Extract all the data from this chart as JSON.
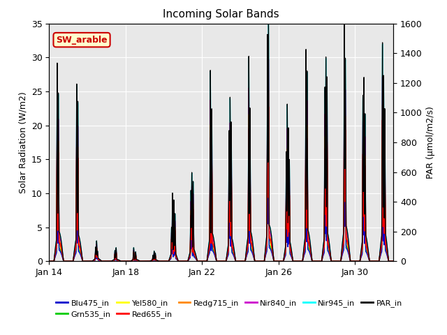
{
  "title": "Incoming Solar Bands",
  "ylabel_left": "Solar Radiation (W/m2)",
  "ylabel_right": "PAR (μmol/m2/s)",
  "ylim_left": [
    0,
    35
  ],
  "ylim_right": [
    0,
    1600
  ],
  "xtick_labels": [
    "Jan 14",
    "Jan 18",
    "Jan 22",
    "Jan 26",
    "Jan 30"
  ],
  "annotation_text": "SW_arable",
  "annotation_fg": "#cc0000",
  "annotation_bg": "#ffffcc",
  "background_color": "#e8e8e8",
  "series_colors": {
    "Nir945_in": "#00ffff",
    "Nir840_in": "#cc00cc",
    "Redg715_in": "#ff8800",
    "Red655_in": "#ff0000",
    "Yel580_in": "#ffff00",
    "Grn535_in": "#00cc00",
    "Blu475_in": "#0000cc",
    "PAR_in": "#000000"
  },
  "series_fracs": {
    "Nir945_in": 1.0,
    "Nir840_in": 0.85,
    "Redg715_in": 0.72,
    "Red655_in": 0.65,
    "Yel580_in": 0.55,
    "Grn535_in": 0.45,
    "Blu475_in": 0.38
  },
  "par_scale": 46.0,
  "daily_peaks": [
    29,
    26,
    3,
    2,
    2,
    1.5,
    10,
    13,
    28,
    24,
    30,
    35,
    23,
    31,
    30,
    35,
    27,
    32
  ],
  "daily_subpeaks": [
    [
      [
        0.42,
        1.0
      ],
      [
        0.48,
        0.85
      ]
    ],
    [
      [
        0.44,
        1.0
      ],
      [
        0.5,
        0.9
      ]
    ],
    [
      [
        0.43,
        0.7
      ],
      [
        0.48,
        1.0
      ],
      [
        0.53,
        0.5
      ]
    ],
    [
      [
        0.44,
        0.8
      ],
      [
        0.5,
        1.0
      ]
    ],
    [
      [
        0.42,
        1.0
      ],
      [
        0.52,
        0.7
      ]
    ],
    [
      [
        0.43,
        0.6
      ],
      [
        0.49,
        1.0
      ],
      [
        0.55,
        0.8
      ]
    ],
    [
      [
        0.4,
        0.5
      ],
      [
        0.45,
        1.0
      ],
      [
        0.52,
        0.9
      ],
      [
        0.58,
        0.7
      ]
    ],
    [
      [
        0.41,
        0.8
      ],
      [
        0.46,
        1.0
      ],
      [
        0.53,
        0.9
      ]
    ],
    [
      [
        0.43,
        1.0
      ],
      [
        0.5,
        0.8
      ]
    ],
    [
      [
        0.41,
        0.8
      ],
      [
        0.46,
        1.0
      ],
      [
        0.52,
        0.85
      ]
    ],
    [
      [
        0.44,
        1.0
      ],
      [
        0.5,
        0.75
      ]
    ],
    [
      [
        0.42,
        0.95
      ],
      [
        0.47,
        1.0
      ]
    ],
    [
      [
        0.4,
        0.7
      ],
      [
        0.45,
        1.0
      ],
      [
        0.51,
        0.85
      ],
      [
        0.56,
        0.65
      ]
    ],
    [
      [
        0.43,
        1.0
      ],
      [
        0.49,
        0.9
      ]
    ],
    [
      [
        0.42,
        0.85
      ],
      [
        0.47,
        1.0
      ],
      [
        0.53,
        0.9
      ]
    ],
    [
      [
        0.44,
        1.0
      ],
      [
        0.49,
        0.85
      ]
    ],
    [
      [
        0.41,
        0.9
      ],
      [
        0.46,
        1.0
      ],
      [
        0.52,
        0.8
      ]
    ],
    [
      [
        0.43,
        1.0
      ],
      [
        0.49,
        0.85
      ],
      [
        0.55,
        0.7
      ]
    ]
  ]
}
